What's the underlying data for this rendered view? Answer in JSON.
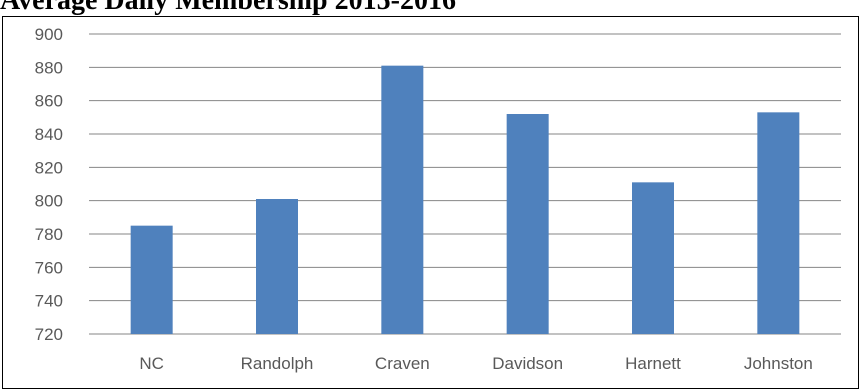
{
  "page": {
    "title": "Average Daily Membership 2015-2016"
  },
  "chart_data": {
    "type": "bar",
    "categories": [
      "NC",
      "Randolph",
      "Craven",
      "Davidson",
      "Harnett",
      "Johnston"
    ],
    "series": [
      {
        "values": [
          785,
          801,
          881,
          852,
          811,
          853
        ]
      }
    ],
    "title": "",
    "xlabel": "",
    "ylabel": "",
    "ylim": [
      720,
      900
    ],
    "yticks": [
      720,
      740,
      760,
      780,
      800,
      820,
      840,
      860,
      880,
      900
    ],
    "grid": true,
    "legend": "none",
    "bar_color": "#4F81BD",
    "grid_color": "#868686",
    "label_color": "#595959"
  }
}
